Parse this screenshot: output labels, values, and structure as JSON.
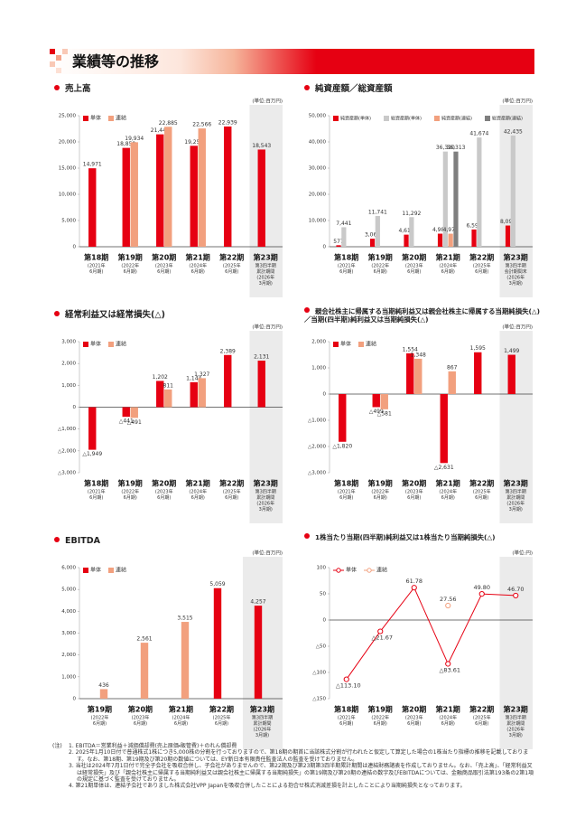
{
  "header": {
    "title": "業績等の推移"
  },
  "chart_data": [
    {
      "type": "bar",
      "title": "売上高",
      "unit": "(単位:百万円)",
      "legend": "top-left",
      "grid": false,
      "categories": [
        "第18期",
        "第19期",
        "第20期",
        "第21期",
        "第22期",
        "第23期"
      ],
      "category_sublabels": [
        [
          "(2021年",
          "6月期)"
        ],
        [
          "(2022年",
          "6月期)"
        ],
        [
          "(2023年",
          "6月期)"
        ],
        [
          "(2024年",
          "6月期)"
        ],
        [
          "(2025年",
          "6月期)"
        ],
        [
          "第3四半期",
          "累計期間",
          "(2026年",
          "3月期)"
        ]
      ],
      "series": [
        {
          "name": "単体",
          "color": "#e60012",
          "values": [
            14971,
            18858,
            21445,
            19256,
            22939,
            18543
          ],
          "value_labels": [
            "14,971",
            "18,858",
            "21,445",
            "19,256",
            "22,939",
            "18,543"
          ]
        },
        {
          "name": "連結",
          "color": "#f2a07e",
          "values": [
            null,
            19934,
            22885,
            22566,
            null,
            null
          ],
          "value_labels": [
            null,
            "19,934",
            "22,885",
            "22,566",
            null,
            null
          ]
        }
      ],
      "ylim": [
        0,
        25000
      ],
      "yticks": [
        0,
        {
          "value": 5000,
          "label": "5,000"
        },
        {
          "value": 10000,
          "label": "10,000"
        },
        {
          "value": 15000,
          "label": "15,000"
        },
        {
          "value": 20000,
          "label": "20,000"
        },
        {
          "value": 25000,
          "label": "25,000"
        }
      ]
    },
    {
      "type": "bar",
      "title": "純資産額／総資産額",
      "unit": "(単位:百万円)",
      "legend": "top-left",
      "grid": false,
      "categories": [
        "第18期",
        "第19期",
        "第20期",
        "第21期",
        "第22期",
        "第23期"
      ],
      "category_sublabels": [
        [
          "(2021年",
          "6月期)"
        ],
        [
          "(2022年",
          "6月期)"
        ],
        [
          "(2023年",
          "6月期)"
        ],
        [
          "(2024年",
          "6月期)"
        ],
        [
          "(2025年",
          "6月期)"
        ],
        [
          "第3四半期",
          "会計期間末",
          "(2026年",
          "3月期)"
        ]
      ],
      "series": [
        {
          "name": "純資産額(単体)",
          "color": "#e60012",
          "values": [
            577,
            3063,
            4617,
            4986,
            6591,
            8091
          ],
          "value_labels": [
            "577",
            "3,063",
            "4,617",
            "4,986",
            "6,591",
            "8,091"
          ]
        },
        {
          "name": "総資産額(単体)",
          "color": "#c9c9c9",
          "values": [
            7441,
            11741,
            11292,
            36320,
            41674,
            42435
          ],
          "value_labels": [
            "7,441",
            "11,741",
            "11,292",
            "36,320",
            "41,674",
            "42,435"
          ]
        },
        {
          "name": "純資産額(連結)",
          "color": "#f2a07e",
          "values": [
            null,
            null,
            null,
            4977,
            null,
            null
          ],
          "value_labels": [
            null,
            null,
            null,
            "4,977",
            null,
            null
          ]
        },
        {
          "name": "総資産額(連結)",
          "color": "#7f7f7f",
          "values": [
            null,
            null,
            null,
            36313,
            null,
            null
          ],
          "value_labels": [
            null,
            null,
            null,
            "36,313",
            null,
            null
          ]
        }
      ],
      "ylim": [
        0,
        50000
      ],
      "yticks": [
        0,
        {
          "value": 10000,
          "label": "10,000"
        },
        {
          "value": 20000,
          "label": "20,000"
        },
        {
          "value": 30000,
          "label": "30,000"
        },
        {
          "value": 40000,
          "label": "40,000"
        },
        {
          "value": 50000,
          "label": "50,000"
        }
      ]
    },
    {
      "type": "bar",
      "title": "経常利益又は経常損失(△)",
      "unit": "(単位:百万円)",
      "legend": "top-left",
      "grid": false,
      "categories": [
        "第18期",
        "第19期",
        "第20期",
        "第21期",
        "第22期",
        "第23期"
      ],
      "category_sublabels": [
        [
          "(2021年",
          "6月期)"
        ],
        [
          "(2022年",
          "6月期)"
        ],
        [
          "(2023年",
          "6月期)"
        ],
        [
          "(2024年",
          "6月期)"
        ],
        [
          "(2025年",
          "6月期)"
        ],
        [
          "第3四半期",
          "累計期間",
          "(2026年",
          "3月期)"
        ]
      ],
      "series": [
        {
          "name": "単体",
          "color": "#e60012",
          "values": [
            -1949,
            -441,
            1202,
            1144,
            2389,
            2131
          ],
          "value_labels": [
            "△1,949",
            "△441",
            "1,202",
            "1,144",
            "2,389",
            "2,131"
          ]
        },
        {
          "name": "連結",
          "color": "#f2a07e",
          "values": [
            null,
            -491,
            811,
            1327,
            null,
            null
          ],
          "value_labels": [
            null,
            "△491",
            "811",
            "1,327",
            null,
            null
          ]
        }
      ],
      "ylim": [
        -3000,
        3000
      ],
      "yticks": [
        {
          "value": -3000,
          "label": "△3,000"
        },
        {
          "value": -2000,
          "label": "△2,000"
        },
        {
          "value": -1000,
          "label": "△1,000"
        },
        0,
        {
          "value": 1000,
          "label": "1,000"
        },
        {
          "value": 2000,
          "label": "2,000"
        },
        {
          "value": 3000,
          "label": "3,000"
        }
      ]
    },
    {
      "type": "bar",
      "title": "親会社株主に帰属する当期純利益又は親会社株主に帰属する当期純損失(△)／当期(四半期)純利益又は当期純損失(△)",
      "unit": "(単位:百万円)",
      "legend": "top-left",
      "grid": false,
      "categories": [
        "第18期",
        "第19期",
        "第20期",
        "第21期",
        "第22期",
        "第23期"
      ],
      "category_sublabels": [
        [
          "(2021年",
          "6月期)"
        ],
        [
          "(2022年",
          "6月期)"
        ],
        [
          "(2023年",
          "6月期)"
        ],
        [
          "(2024年",
          "6月期)"
        ],
        [
          "(2025年",
          "6月期)"
        ],
        [
          "第3四半期",
          "累計期間",
          "(2026年",
          "3月期)"
        ]
      ],
      "series": [
        {
          "name": "単体",
          "color": "#e60012",
          "values": [
            -1820,
            -499,
            1554,
            -2631,
            1595,
            1499
          ],
          "value_labels": [
            "△1,820",
            "△499",
            "1,554",
            "△2,631",
            "1,595",
            "1,499"
          ]
        },
        {
          "name": "連結",
          "color": "#f2a07e",
          "values": [
            null,
            -581,
            1348,
            867,
            null,
            null
          ],
          "value_labels": [
            null,
            "△581",
            "1,348",
            "867",
            null,
            null
          ]
        }
      ],
      "ylim": [
        -3000,
        2000
      ],
      "yticks": [
        {
          "value": -3000,
          "label": "△3,000"
        },
        {
          "value": -2000,
          "label": "△2,000"
        },
        {
          "value": -1000,
          "label": "△1,000"
        },
        0,
        {
          "value": 1000,
          "label": "1,000"
        },
        {
          "value": 2000,
          "label": "2,000"
        }
      ]
    },
    {
      "type": "bar",
      "title": "EBITDA",
      "unit": "(単位:百万円)",
      "legend": "top-left",
      "grid": false,
      "categories": [
        "第19期",
        "第20期",
        "第21期",
        "第22期",
        "第23期"
      ],
      "category_sublabels": [
        [
          "(2022年",
          "6月期)"
        ],
        [
          "(2023年",
          "6月期)"
        ],
        [
          "(2024年",
          "6月期)"
        ],
        [
          "(2025年",
          "6月期)"
        ],
        [
          "第3四半期",
          "累計期間",
          "(2026年",
          "3月期)"
        ]
      ],
      "series": [
        {
          "name": "単体",
          "color": "#e60012",
          "values": [
            null,
            null,
            null,
            5059,
            4257
          ],
          "value_labels": [
            null,
            null,
            null,
            "5,059",
            "4,257"
          ]
        },
        {
          "name": "連結",
          "color": "#f2a07e",
          "values": [
            436,
            2561,
            3515,
            null,
            null
          ],
          "value_labels": [
            "436",
            "2,561",
            "3,515",
            null,
            null
          ]
        }
      ],
      "ylim": [
        0,
        6000
      ],
      "yticks": [
        0,
        {
          "value": 1000,
          "label": "1,000"
        },
        {
          "value": 2000,
          "label": "2,000"
        },
        {
          "value": 3000,
          "label": "3,000"
        },
        {
          "value": 4000,
          "label": "4,000"
        },
        {
          "value": 5000,
          "label": "5,000"
        },
        {
          "value": 6000,
          "label": "6,000"
        }
      ]
    },
    {
      "type": "line",
      "title": "1株当たり当期(四半期)純利益又は1株当たり当期純損失(△)",
      "unit": "(単位:円)",
      "legend": "top-left",
      "grid": false,
      "categories": [
        "第18期",
        "第19期",
        "第20期",
        "第21期",
        "第22期",
        "第23期"
      ],
      "category_sublabels": [
        [
          "(2021年",
          "6月期)"
        ],
        [
          "(2022年",
          "6月期)"
        ],
        [
          "(2023年",
          "6月期)"
        ],
        [
          "(2024年",
          "6月期)"
        ],
        [
          "(2025年",
          "6月期)"
        ],
        [
          "第3四半期",
          "累計期間",
          "(2026年",
          "3月期)"
        ]
      ],
      "series": [
        {
          "name": "単体",
          "color": "#e60012",
          "values": [
            -113.1,
            -21.67,
            61.78,
            -83.61,
            49.8,
            46.7
          ],
          "value_labels": [
            "△113.10",
            "△21.67",
            "61.78",
            "△83.61",
            "49.80",
            "46.70"
          ]
        },
        {
          "name": "連結",
          "color": "#f2a07e",
          "values": [
            null,
            null,
            null,
            27.56,
            null,
            null
          ],
          "value_labels": [
            null,
            null,
            null,
            "27.56",
            null,
            null
          ]
        }
      ],
      "ylim": [
        -150,
        100
      ],
      "yticks": [
        {
          "value": -150,
          "label": "△150"
        },
        {
          "value": -100,
          "label": "△100"
        },
        {
          "value": -50,
          "label": "△50"
        },
        0,
        50,
        100
      ]
    }
  ],
  "notes": {
    "label": "(注)",
    "items": [
      "1. EBITDA＝営業利益＋減価償却費(売上原価・販管費)＋のれん償却費",
      "2. 2025年1月10日付で普通株式1株につき5,000株の分割を行っておりますので、第18期の期首に当該株式分割が行われたと仮定して算定した場合の1株当たり指標の推移を記載しております。なお、第18期、第19期及び第20期の数値については、EY新日本有限責任監査法人の監査を受けておりません。",
      "3. 当社は2024年7月1日付で完全子会社を吸収合併し、子会社がありませんので、第22期及び第23期第3四半期累計期間は連結財務諸表を作成しておりません。なお、「売上高」、「経常利益又は経常損失」及び「親会社株主に帰属する当期純利益又は親会社株主に帰属する当期純損失」の第19期及び第20期の連結の数字及びEBITDAについては、金融商品取引法第193条の2第1項の規定に基づく監査を受けておりません。",
      "4. 第21期単体は、連結子会社でありました株式会社VPP Japanを吸収合併したことによる抱合せ株式消滅差損を計上したことにより当期純損失となっております。"
    ]
  }
}
